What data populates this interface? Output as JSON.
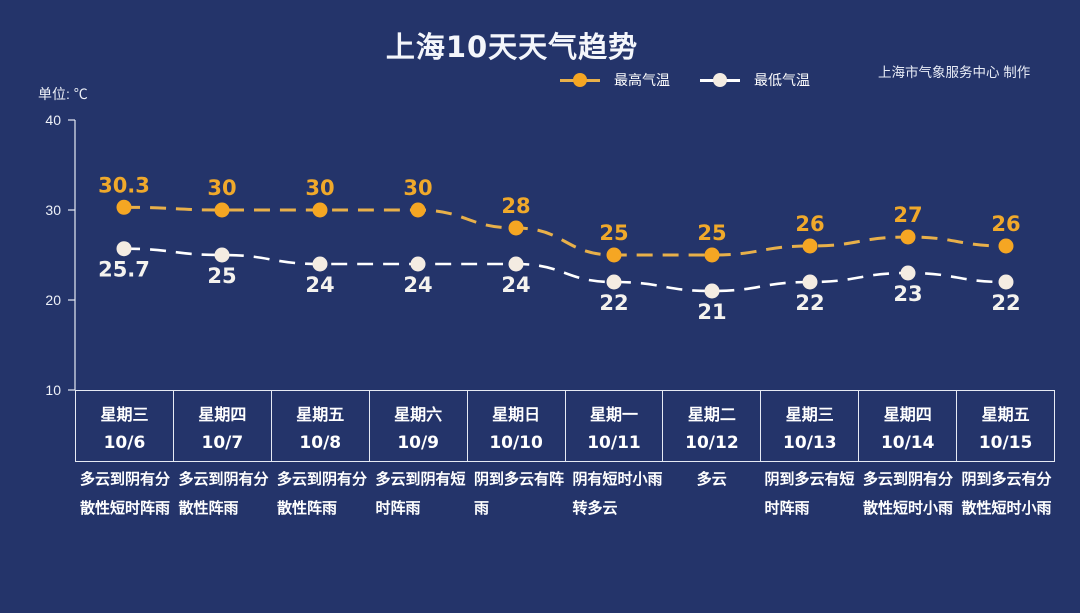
{
  "title": "上海10天天气趋势",
  "credit": "上海市气象服务中心 制作",
  "unit_label": "单位: ℃",
  "legend": [
    {
      "label": "最高气温",
      "color": "#f5a623"
    },
    {
      "label": "最低气温",
      "color": "#f4ece2"
    }
  ],
  "colors": {
    "background": "#24346a",
    "high_line": "#e8b04a",
    "high_point": "#f5a623",
    "low_line": "#ffffff",
    "low_point": "#f4ece2",
    "axis": "#e6eaf4"
  },
  "days": [
    {
      "weekday": "星期三",
      "date": "10/6",
      "weather": "多云到阴有分散性短时阵雨"
    },
    {
      "weekday": "星期四",
      "date": "10/7",
      "weather": "多云到阴有分散性阵雨"
    },
    {
      "weekday": "星期五",
      "date": "10/8",
      "weather": "多云到阴有分散性阵雨"
    },
    {
      "weekday": "星期六",
      "date": "10/9",
      "weather": "多云到阴有短时阵雨"
    },
    {
      "weekday": "星期日",
      "date": "10/10",
      "weather": "阴到多云有阵雨"
    },
    {
      "weekday": "星期一",
      "date": "10/11",
      "weather": "阴有短时小雨转多云"
    },
    {
      "weekday": "星期二",
      "date": "10/12",
      "weather": "多云"
    },
    {
      "weekday": "星期三",
      "date": "10/13",
      "weather": "阴到多云有短时阵雨"
    },
    {
      "weekday": "星期四",
      "date": "10/14",
      "weather": "多云到阴有分散性短时小雨"
    },
    {
      "weekday": "星期五",
      "date": "10/15",
      "weather": "阴到多云有分散性短时小雨"
    }
  ],
  "chart_data": {
    "type": "line",
    "title": "上海10天天气趋势",
    "xlabel": "",
    "ylabel": "单位: ℃",
    "categories": [
      "10/6",
      "10/7",
      "10/8",
      "10/9",
      "10/10",
      "10/11",
      "10/12",
      "10/13",
      "10/14",
      "10/15"
    ],
    "series": [
      {
        "name": "最高气温",
        "values": [
          30.3,
          30,
          30,
          30,
          28,
          25,
          25,
          26,
          27,
          26
        ],
        "color": "#f5a623",
        "style": "dashed"
      },
      {
        "name": "最低气温",
        "values": [
          25.7,
          25,
          24,
          24,
          24,
          22,
          21,
          22,
          23,
          22
        ],
        "color": "#ffffff",
        "style": "dashed"
      }
    ],
    "yticks": [
      10,
      20,
      30,
      40
    ],
    "ylim": [
      10,
      40
    ],
    "grid": false,
    "legend_position": "top-right",
    "data_labels": true,
    "annotation": "上海市气象服务中心 制作"
  }
}
